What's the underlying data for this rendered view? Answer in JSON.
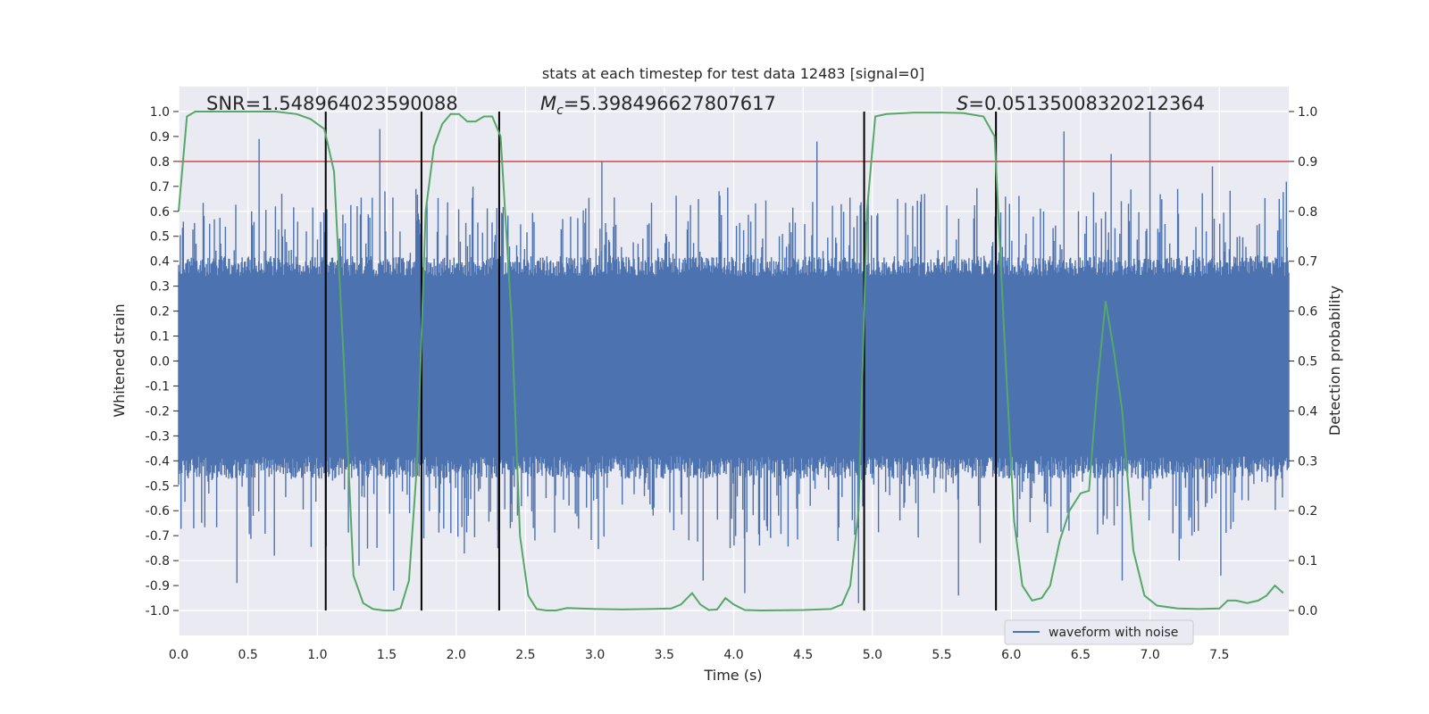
{
  "chart_data": {
    "type": "line",
    "title": "stats at each timestep for test data 12483 [signal=0]",
    "xlabel": "Time (s)",
    "ylabel_left": "Whitened strain",
    "ylabel_right": "Detection probability",
    "xlim": [
      0.0,
      8.0
    ],
    "ylim_left": [
      -1.1,
      1.1
    ],
    "ylim_right": [
      -0.05,
      1.05
    ],
    "x_ticks": [
      "0.0",
      "0.5",
      "1.0",
      "1.5",
      "2.0",
      "2.5",
      "3.0",
      "3.5",
      "4.0",
      "4.5",
      "5.0",
      "5.5",
      "6.0",
      "6.5",
      "7.0",
      "7.5"
    ],
    "y_ticks_left": [
      "1.0",
      "0.9",
      "0.8",
      "0.7",
      "0.6",
      "0.5",
      "0.4",
      "0.3",
      "0.2",
      "0.1",
      "0.0",
      "-0.1",
      "-0.2",
      "-0.3",
      "-0.4",
      "-0.5",
      "-0.6",
      "-0.7",
      "-0.8",
      "-0.9",
      "-1.0"
    ],
    "y_ticks_right": [
      "1.0",
      "0.9",
      "0.8",
      "0.7",
      "0.6",
      "0.5",
      "0.4",
      "0.3",
      "0.2",
      "0.1",
      "0.0"
    ],
    "grid": true,
    "annotations": {
      "snr": "SNR=1.548964023590088",
      "mc_symbol": "M",
      "mc_sub": "c",
      "mc_value": "=5.398496627807617",
      "s_symbol": "S",
      "s_value": "=0.05135008320212364"
    },
    "threshold": {
      "axis": "right",
      "value": 0.9,
      "color": "#c44e52"
    },
    "vertical_lines": [
      1.06,
      1.75,
      2.31,
      4.94,
      5.89
    ],
    "waveform": {
      "name": "waveform with noise",
      "color": "#4c72b0",
      "x_range": [
        0.0,
        8.0
      ],
      "envelope_upper": 0.4,
      "envelope_lower": -0.45,
      "peaks": [
        [
          0.58,
          0.89
        ],
        [
          1.45,
          0.93
        ],
        [
          1.55,
          -0.92
        ],
        [
          0.42,
          -0.89
        ],
        [
          0.69,
          -0.78
        ],
        [
          3.05,
          0.8
        ],
        [
          3.78,
          -0.88
        ],
        [
          4.08,
          -0.93
        ],
        [
          4.6,
          0.88
        ],
        [
          4.9,
          -0.97
        ],
        [
          5.62,
          -0.94
        ],
        [
          6.38,
          0.92
        ],
        [
          6.72,
          0.83
        ],
        [
          7.0,
          1.0
        ],
        [
          7.45,
          0.78
        ],
        [
          6.8,
          -0.88
        ],
        [
          7.21,
          -0.8
        ],
        [
          7.51,
          -0.86
        ],
        [
          1.3,
          -0.82
        ],
        [
          2.3,
          -0.75
        ]
      ]
    },
    "series": [
      {
        "name": "detection probability",
        "axis": "right",
        "color": "#55a868",
        "x": [
          0.0,
          0.06,
          0.12,
          0.2,
          0.3,
          0.5,
          0.7,
          0.85,
          0.95,
          1.0,
          1.05,
          1.12,
          1.19,
          1.26,
          1.33,
          1.4,
          1.48,
          1.55,
          1.6,
          1.66,
          1.72,
          1.78,
          1.84,
          1.9,
          1.96,
          2.02,
          2.08,
          2.14,
          2.2,
          2.26,
          2.32,
          2.4,
          2.46,
          2.52,
          2.58,
          2.65,
          2.72,
          2.8,
          3.0,
          3.2,
          3.4,
          3.55,
          3.62,
          3.7,
          3.76,
          3.82,
          3.88,
          3.94,
          4.0,
          4.08,
          4.2,
          4.5,
          4.7,
          4.78,
          4.84,
          4.9,
          4.96,
          5.02,
          5.1,
          5.3,
          5.5,
          5.65,
          5.8,
          5.88,
          5.95,
          6.02,
          6.08,
          6.15,
          6.22,
          6.28,
          6.35,
          6.42,
          6.5,
          6.56,
          6.62,
          6.68,
          6.74,
          6.8,
          6.88,
          6.96,
          7.05,
          7.2,
          7.35,
          7.5,
          7.56,
          7.62,
          7.7,
          7.78,
          7.84,
          7.9,
          7.96
        ],
        "values": [
          0.8,
          0.99,
          1.0,
          1.0,
          1.0,
          1.0,
          1.0,
          0.995,
          0.985,
          0.975,
          0.965,
          0.88,
          0.5,
          0.07,
          0.015,
          0.003,
          0.0,
          0.0,
          0.005,
          0.06,
          0.3,
          0.8,
          0.93,
          0.975,
          0.995,
          0.995,
          0.98,
          0.98,
          0.99,
          0.99,
          0.95,
          0.58,
          0.15,
          0.03,
          0.003,
          0.0,
          0.0,
          0.005,
          0.003,
          0.002,
          0.003,
          0.004,
          0.012,
          0.035,
          0.012,
          0.001,
          0.002,
          0.025,
          0.012,
          0.001,
          0.0,
          0.001,
          0.003,
          0.012,
          0.05,
          0.2,
          0.8,
          0.99,
          0.995,
          0.998,
          0.998,
          0.997,
          0.99,
          0.95,
          0.55,
          0.18,
          0.05,
          0.02,
          0.025,
          0.05,
          0.14,
          0.2,
          0.235,
          0.24,
          0.45,
          0.62,
          0.52,
          0.4,
          0.12,
          0.03,
          0.01,
          0.004,
          0.003,
          0.004,
          0.02,
          0.02,
          0.015,
          0.02,
          0.03,
          0.05,
          0.035
        ]
      }
    ],
    "legend": {
      "location": "lower-right",
      "entries": [
        "waveform with noise"
      ]
    }
  }
}
